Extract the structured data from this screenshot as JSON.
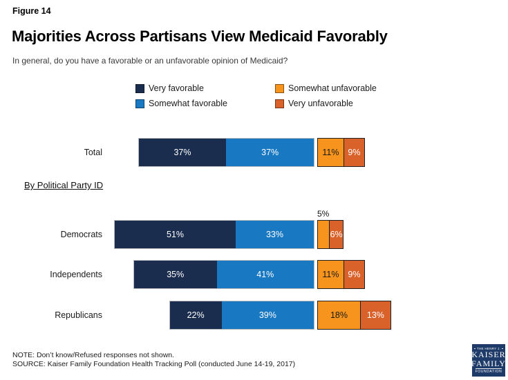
{
  "header": {
    "figure_label": "Figure 14",
    "title": "Majorities Across Partisans View Medicaid Favorably",
    "subtitle": "In general, do you have a favorable or an unfavorable opinion of Medicaid?"
  },
  "legend": {
    "items": [
      {
        "label": "Very favorable",
        "color": "#1b2d4f"
      },
      {
        "label": "Somewhat favorable",
        "color": "#1878c2"
      },
      {
        "label": "Somewhat unfavorable",
        "color": "#f7941e"
      },
      {
        "label": "Very unfavorable",
        "color": "#d9622b"
      }
    ]
  },
  "section_label": "By Political Party ID",
  "chart_data": {
    "type": "bar",
    "orientation": "horizontal",
    "stacked": true,
    "unit": "%",
    "title": "Majorities Across Partisans View Medicaid Favorably",
    "categories": [
      "Total",
      "Democrats",
      "Independents",
      "Republicans"
    ],
    "series": [
      {
        "name": "Very favorable",
        "color": "#1b2d4f",
        "text_color": "#ffffff",
        "values": [
          37,
          51,
          35,
          22
        ],
        "labels": [
          "37%",
          "51%",
          "35%",
          "22%"
        ],
        "label_positions": [
          "inside",
          "inside",
          "inside",
          "inside"
        ]
      },
      {
        "name": "Somewhat favorable",
        "color": "#1878c2",
        "text_color": "#ffffff",
        "values": [
          37,
          33,
          41,
          39
        ],
        "labels": [
          "37%",
          "33%",
          "41%",
          "39%"
        ],
        "label_positions": [
          "inside",
          "inside",
          "inside",
          "inside"
        ]
      },
      {
        "name": "Somewhat unfavorable",
        "color": "#f7941e",
        "text_color": "#1a1a1a",
        "values": [
          11,
          5,
          11,
          18
        ],
        "labels": [
          "11%",
          "5%",
          "11%",
          "18%"
        ],
        "label_positions": [
          "inside",
          "above",
          "inside",
          "inside"
        ]
      },
      {
        "name": "Very unfavorable",
        "color": "#d9622b",
        "text_color": "#ffffff",
        "values": [
          9,
          6,
          9,
          13
        ],
        "labels": [
          "9%",
          "6%",
          "9%",
          "13%"
        ],
        "label_positions": [
          "inside",
          "inside",
          "inside",
          "inside"
        ]
      }
    ],
    "layout_hints": {
      "favorable_right_aligned": true,
      "unfavorable_left_aligned": true,
      "gap_between_groups": true,
      "legend_position": "top",
      "grid": false
    }
  },
  "footer": {
    "note": "NOTE: Don’t know/Refused responses not shown.",
    "source": "SOURCE: Kaiser Family Foundation Health Tracking Poll (conducted June 14-19, 2017)"
  },
  "logo": {
    "line1": "THE HENRY J.",
    "line2": "KAISER",
    "line3": "FAMILY",
    "line4": "FOUNDATION"
  }
}
